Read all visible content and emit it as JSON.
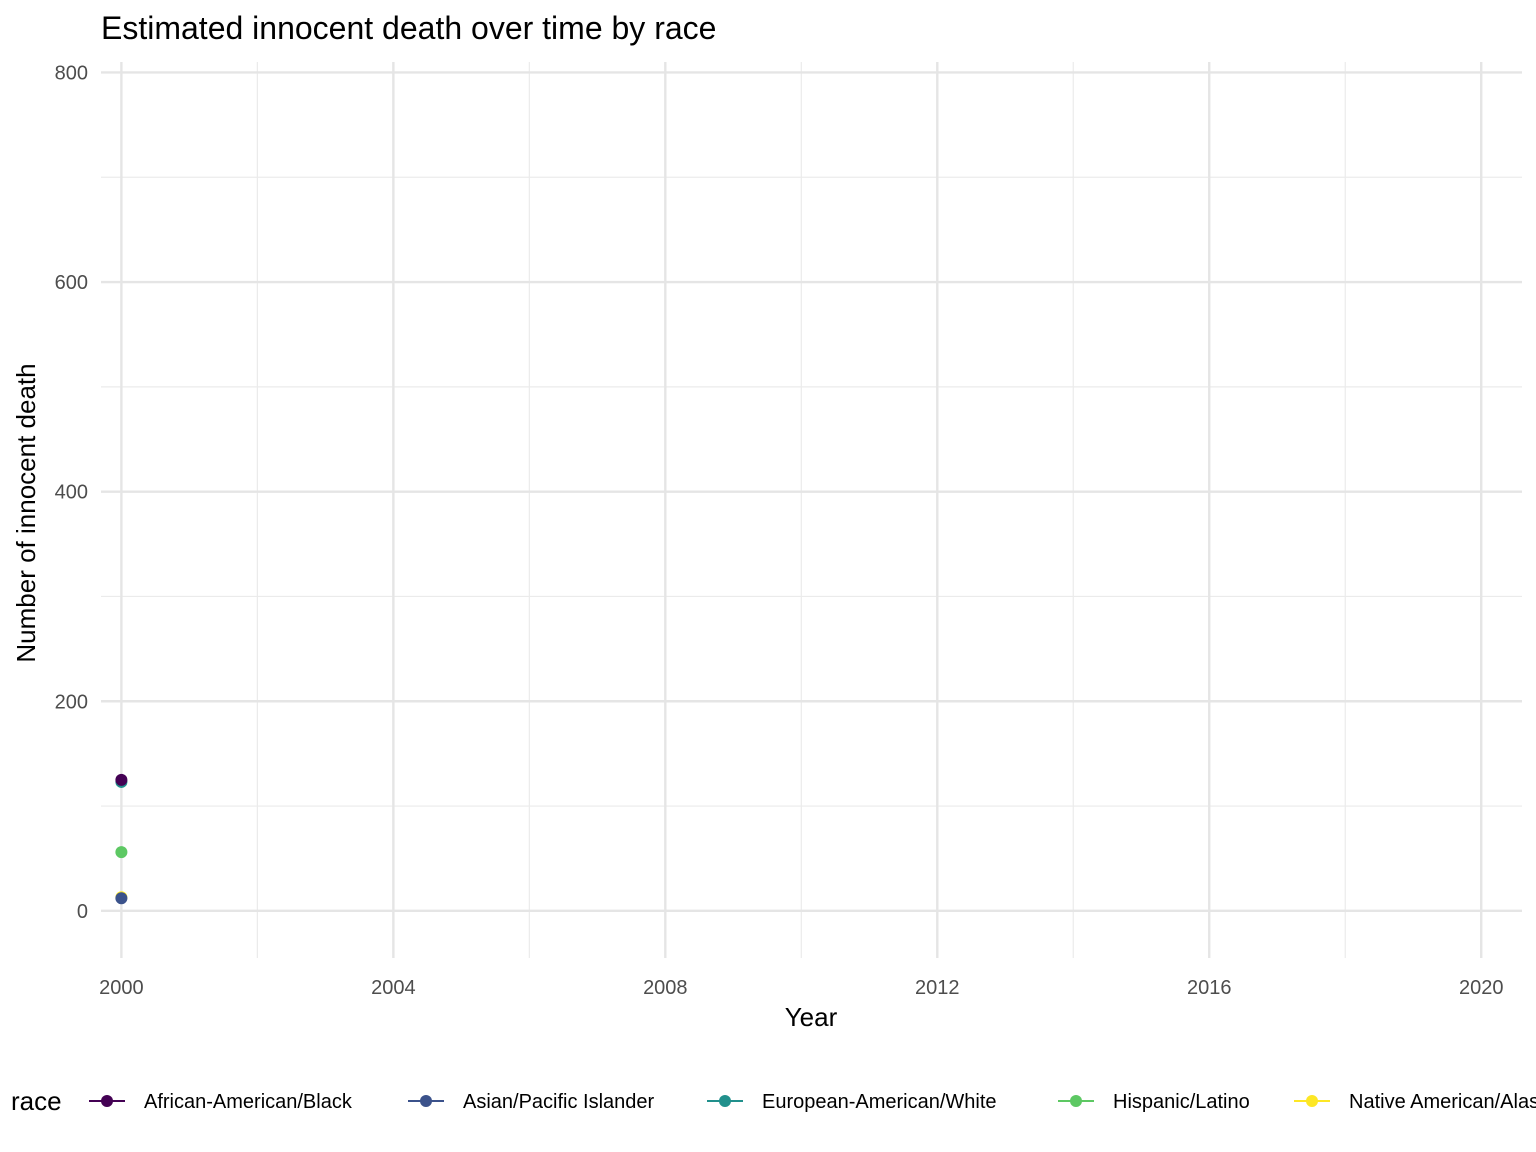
{
  "chart_data": {
    "type": "line",
    "title": "Estimated innocent death over time by race",
    "xlabel": "Year",
    "ylabel": "Number of innocent death",
    "xlim": [
      1999.7,
      2020.6
    ],
    "ylim": [
      -45,
      810
    ],
    "x_ticks": [
      2000,
      2004,
      2008,
      2012,
      2016,
      2020
    ],
    "y_ticks": [
      0,
      200,
      400,
      600,
      800
    ],
    "y_minor_ticks": [
      100,
      300,
      500,
      700
    ],
    "grid": true,
    "legend": {
      "title": "race",
      "position": "bottom"
    },
    "series": [
      {
        "name": "African-American/Black",
        "color": "#440154",
        "x": [
          2000
        ],
        "y": [
          125
        ]
      },
      {
        "name": "Asian/Pacific Islander",
        "color": "#3B528B",
        "x": [
          2000
        ],
        "y": [
          12
        ]
      },
      {
        "name": "European-American/White",
        "color": "#21908C",
        "x": [
          2000
        ],
        "y": [
          123
        ]
      },
      {
        "name": "Hispanic/Latino",
        "color": "#5DC863",
        "x": [
          2000
        ],
        "y": [
          56
        ]
      },
      {
        "name": "Native American/Alaskan",
        "color": "#FDE725",
        "x": [
          2000
        ],
        "y": [
          13
        ]
      }
    ]
  }
}
